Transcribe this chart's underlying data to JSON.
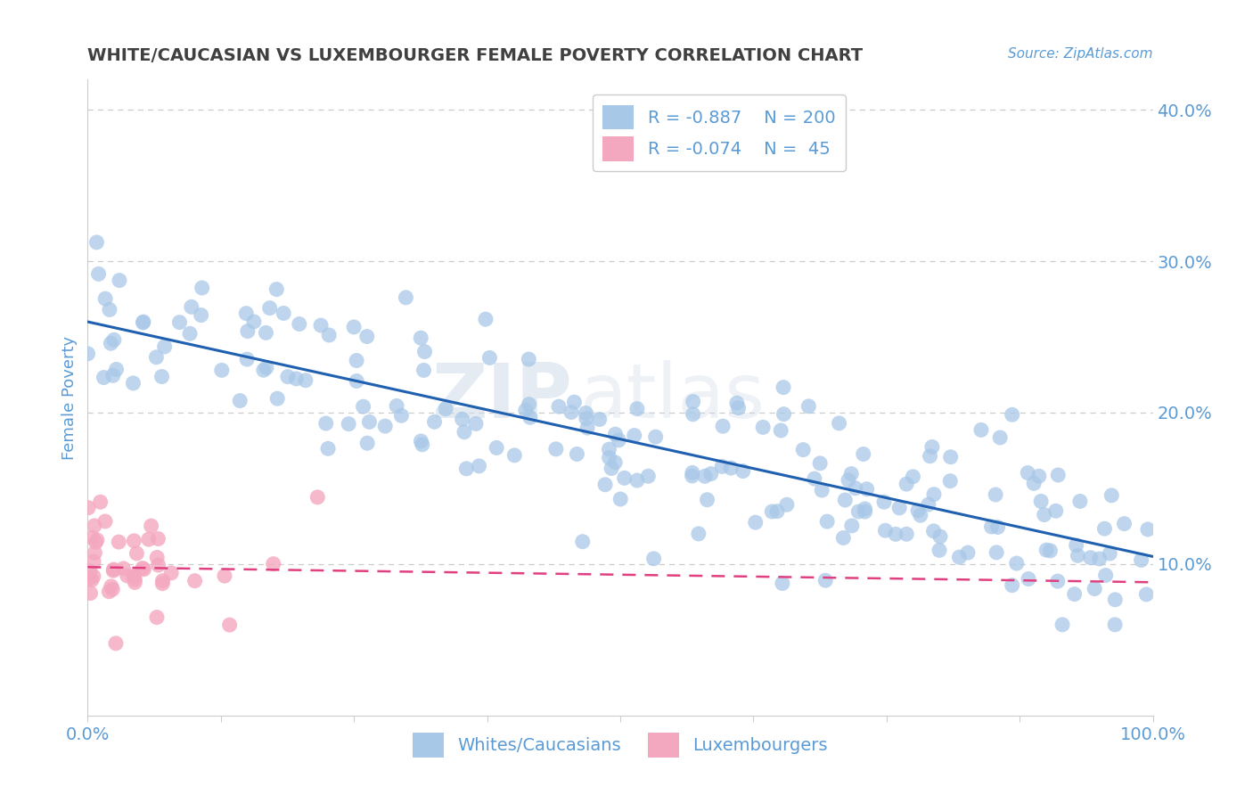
{
  "title": "WHITE/CAUCASIAN VS LUXEMBOURGER FEMALE POVERTY CORRELATION CHART",
  "source_text": "Source: ZipAtlas.com",
  "ylabel": "Female Poverty",
  "watermark": "ZIPatlas",
  "xlim": [
    0,
    1
  ],
  "ylim": [
    0,
    0.42
  ],
  "yticks": [
    0.1,
    0.2,
    0.3,
    0.4
  ],
  "ytick_labels": [
    "10.0%",
    "20.0%",
    "30.0%",
    "40.0%"
  ],
  "blue_R": -0.887,
  "blue_N": 200,
  "pink_R": -0.074,
  "pink_N": 45,
  "blue_color": "#a8c8e8",
  "pink_color": "#f4a8c0",
  "blue_line_color": "#2060b0",
  "pink_line_color": "#e04080",
  "title_color": "#404040",
  "axis_label_color": "#5b9bd5",
  "tick_color": "#5b9bd5",
  "grid_color": "#cccccc",
  "legend_label_blue": "Whites/Caucasians",
  "legend_label_pink": "Luxembourgers",
  "blue_intercept": 0.26,
  "blue_slope": -0.155,
  "pink_intercept": 0.098,
  "pink_slope": -0.01
}
